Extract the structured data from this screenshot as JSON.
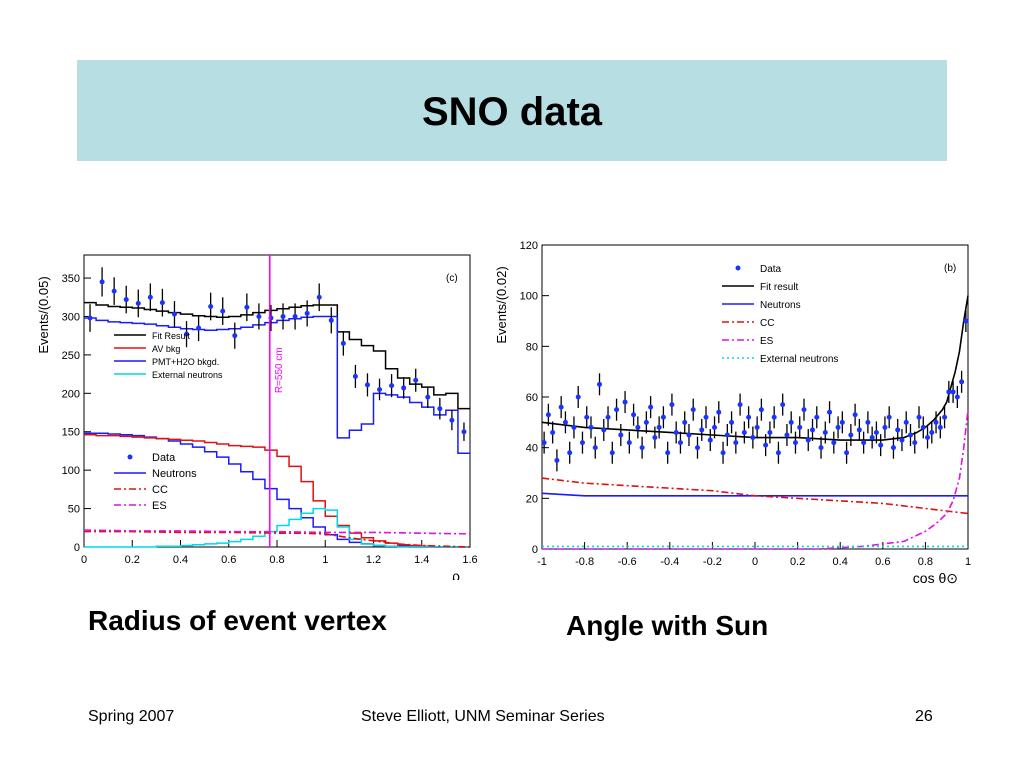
{
  "slide": {
    "title": "SNO data",
    "captions": {
      "left": "Radius of event vertex",
      "right": "Angle with Sun"
    },
    "footer": {
      "left": "Spring 2007",
      "center": "Steve Elliott, UNM Seminar Series",
      "page": "26"
    },
    "colors": {
      "title_band": "#b7dee2",
      "data": "#1a33ff",
      "fit": "#000000",
      "neutrons": "#1a1aff",
      "cc": "#e01010",
      "es": "#e010e0",
      "ext": "#00d8e8",
      "r_line": "#ff00ff"
    }
  },
  "chart_data": [
    {
      "type": "line",
      "panel_tag": "(c)",
      "xlabel": "ρ",
      "ylabel": "Events/(0.05)",
      "xlim": [
        0,
        1.6
      ],
      "ylim": [
        0,
        380
      ],
      "x_ticks": [
        "0",
        "0.2",
        "0.4",
        "0.6",
        "0.8",
        "1",
        "1.2",
        "1.4",
        "1.6"
      ],
      "x_tick_values": [
        0,
        0.2,
        0.4,
        0.6,
        0.8,
        1,
        1.2,
        1.4,
        1.6
      ],
      "y_ticks": [
        "0",
        "50",
        "100",
        "150",
        "200",
        "250",
        "300",
        "350"
      ],
      "y_tick_values": [
        0,
        50,
        100,
        150,
        200,
        250,
        300,
        350
      ],
      "marker": {
        "x": 0.77,
        "label": "R=550 cm"
      },
      "legend_top": [
        "Fit Result",
        "AV bkg",
        "PMT+H2O bkgd.",
        "External neutrons"
      ],
      "legend_bottom": [
        "Data",
        "Neutrons",
        "CC",
        "ES"
      ],
      "series": [
        {
          "name": "Fit Result",
          "style": "step",
          "color": "#000000",
          "edges": [
            0,
            0.05,
            0.1,
            0.15,
            0.2,
            0.25,
            0.3,
            0.35,
            0.4,
            0.45,
            0.5,
            0.55,
            0.6,
            0.65,
            0.7,
            0.75,
            0.8,
            0.85,
            0.9,
            0.95,
            1.0,
            1.05,
            1.1,
            1.15,
            1.2,
            1.25,
            1.3,
            1.35,
            1.4,
            1.45,
            1.5,
            1.55,
            1.6
          ],
          "values": [
            318,
            315,
            313,
            312,
            311,
            309,
            307,
            305,
            303,
            301,
            300,
            299,
            300,
            302,
            305,
            308,
            310,
            312,
            314,
            315,
            315,
            280,
            270,
            262,
            255,
            232,
            220,
            212,
            208,
            198,
            200,
            180
          ]
        },
        {
          "name": "PMT+H2O bkgd.",
          "style": "step",
          "color": "#1a1aff",
          "edges": [
            0,
            0.05,
            0.1,
            0.15,
            0.2,
            0.25,
            0.3,
            0.35,
            0.4,
            0.45,
            0.5,
            0.55,
            0.6,
            0.65,
            0.7,
            0.75,
            0.8,
            0.85,
            0.9,
            0.95,
            1.0,
            1.05,
            1.1,
            1.15,
            1.2,
            1.25,
            1.3,
            1.35,
            1.4,
            1.45,
            1.5,
            1.55,
            1.6
          ],
          "values": [
            298,
            295,
            293,
            292,
            291,
            290,
            288,
            286,
            284,
            283,
            282,
            283,
            284,
            286,
            289,
            292,
            295,
            297,
            299,
            300,
            300,
            142,
            152,
            160,
            200,
            198,
            195,
            188,
            182,
            172,
            178,
            122
          ]
        },
        {
          "name": "Neutrons",
          "style": "step",
          "color": "#1a1aff",
          "edges": [
            0,
            0.05,
            0.1,
            0.15,
            0.2,
            0.25,
            0.3,
            0.35,
            0.4,
            0.45,
            0.5,
            0.55,
            0.6,
            0.65,
            0.7,
            0.75,
            0.8,
            0.85,
            0.9,
            0.95,
            1.0,
            1.05,
            1.1,
            1.15,
            1.2,
            1.25,
            1.3,
            1.35,
            1.4,
            1.45,
            1.5,
            1.55,
            1.6
          ],
          "values": [
            148,
            148,
            147,
            146,
            145,
            143,
            141,
            138,
            134,
            130,
            124,
            117,
            108,
            98,
            88,
            76,
            62,
            50,
            38,
            26,
            16,
            10,
            6,
            4,
            2,
            1,
            1,
            0,
            0,
            0,
            0,
            0
          ]
        },
        {
          "name": "AV bkg",
          "style": "step",
          "color": "#e01010",
          "edges": [
            0,
            0.05,
            0.1,
            0.15,
            0.2,
            0.25,
            0.3,
            0.35,
            0.4,
            0.45,
            0.5,
            0.55,
            0.6,
            0.65,
            0.7,
            0.75,
            0.8,
            0.85,
            0.9,
            0.95,
            1.0,
            1.05,
            1.1,
            1.15,
            1.2,
            1.25,
            1.3,
            1.35,
            1.4,
            1.45,
            1.5,
            1.55,
            1.6
          ],
          "values": [
            146,
            145,
            145,
            144,
            143,
            142,
            141,
            140,
            139,
            138,
            136,
            134,
            132,
            131,
            130,
            126,
            118,
            105,
            85,
            60,
            40,
            28,
            18,
            12,
            8,
            5,
            3,
            2,
            1,
            0,
            0,
            0
          ]
        },
        {
          "name": "External neutrons",
          "style": "step",
          "color": "#00d8e8",
          "edges": [
            0,
            0.05,
            0.1,
            0.15,
            0.2,
            0.25,
            0.3,
            0.35,
            0.4,
            0.45,
            0.5,
            0.55,
            0.6,
            0.65,
            0.7,
            0.75,
            0.8,
            0.85,
            0.9,
            0.95,
            1.0,
            1.05,
            1.1,
            1.15,
            1.2,
            1.25,
            1.3,
            1.35,
            1.4,
            1.45,
            1.5,
            1.55,
            1.6
          ],
          "values": [
            0,
            0,
            0,
            0,
            0,
            0,
            1,
            1,
            2,
            3,
            4,
            5,
            7,
            10,
            14,
            20,
            28,
            36,
            44,
            50,
            48,
            26,
            10,
            4,
            2,
            1,
            0,
            0,
            0,
            0,
            0,
            0
          ]
        },
        {
          "name": "CC",
          "style": "dashdot",
          "color": "#e01010",
          "x": [
            0,
            0.2,
            0.4,
            0.6,
            0.8,
            0.9,
            1.0,
            1.1,
            1.2,
            1.3,
            1.4,
            1.5,
            1.6
          ],
          "y": [
            20,
            20,
            19,
            19,
            18,
            18,
            17,
            12,
            8,
            4,
            2,
            1,
            0
          ]
        },
        {
          "name": "ES",
          "style": "dashdot",
          "color": "#e010e0",
          "x": [
            0,
            0.2,
            0.4,
            0.6,
            0.8,
            1.0,
            1.2,
            1.4,
            1.6
          ],
          "y": [
            22,
            21,
            21,
            20,
            20,
            19,
            19,
            18,
            17
          ]
        },
        {
          "name": "Data",
          "style": "points",
          "color": "#1a33ff",
          "x": [
            0.025,
            0.075,
            0.125,
            0.175,
            0.225,
            0.275,
            0.325,
            0.375,
            0.425,
            0.475,
            0.525,
            0.575,
            0.625,
            0.675,
            0.725,
            0.775,
            0.825,
            0.875,
            0.925,
            0.975,
            1.025,
            1.075,
            1.125,
            1.175,
            1.225,
            1.275,
            1.325,
            1.375,
            1.425,
            1.475,
            1.525,
            1.575
          ],
          "y": [
            298,
            345,
            333,
            322,
            317,
            325,
            318,
            303,
            277,
            285,
            313,
            307,
            275,
            312,
            300,
            298,
            300,
            300,
            304,
            325,
            295,
            265,
            222,
            211,
            205,
            210,
            207,
            217,
            195,
            180,
            165,
            150
          ],
          "err": [
            18,
            19,
            18,
            18,
            18,
            18,
            18,
            17,
            17,
            17,
            18,
            18,
            17,
            18,
            17,
            17,
            17,
            17,
            17,
            18,
            17,
            16,
            15,
            15,
            14,
            15,
            14,
            15,
            14,
            14,
            13,
            12
          ]
        }
      ]
    },
    {
      "type": "line",
      "panel_tag": "(b)",
      "xlabel": "cos θ⊙",
      "ylabel": "Events/(0.02)",
      "xlim": [
        -1,
        1
      ],
      "ylim": [
        0,
        120
      ],
      "x_ticks": [
        "-1",
        "-0.8",
        "-0.6",
        "-0.4",
        "-0.2",
        "0",
        "0.2",
        "0.4",
        "0.6",
        "0.8",
        "1"
      ],
      "x_tick_values": [
        -1,
        -0.8,
        -0.6,
        -0.4,
        -0.2,
        0,
        0.2,
        0.4,
        0.6,
        0.8,
        1
      ],
      "y_ticks": [
        "0",
        "20",
        "40",
        "60",
        "80",
        "100",
        "120"
      ],
      "y_tick_values": [
        0,
        20,
        40,
        60,
        80,
        100,
        120
      ],
      "legend": [
        "Data",
        "Fit result",
        "Neutrons",
        "CC",
        "ES",
        "External neutrons"
      ],
      "series": [
        {
          "name": "Fit result",
          "style": "line",
          "color": "#000000",
          "x": [
            -1,
            -0.8,
            -0.6,
            -0.4,
            -0.2,
            0,
            0.2,
            0.4,
            0.6,
            0.7,
            0.76,
            0.8,
            0.84,
            0.88,
            0.9,
            0.92,
            0.94,
            0.96,
            0.98,
            1.0
          ],
          "y": [
            50,
            48,
            47,
            46,
            45,
            44,
            44,
            43,
            43,
            44,
            46,
            48,
            51,
            55,
            58,
            64,
            70,
            78,
            90,
            100
          ]
        },
        {
          "name": "Neutrons",
          "style": "line",
          "color": "#1a1aff",
          "x": [
            -1,
            -0.8,
            -0.6,
            -0.4,
            -0.2,
            0,
            0.2,
            0.4,
            0.6,
            0.8,
            1.0
          ],
          "y": [
            22,
            21,
            21,
            21,
            21,
            21,
            21,
            21,
            21,
            21,
            21
          ]
        },
        {
          "name": "CC",
          "style": "dashdot",
          "color": "#e01010",
          "x": [
            -1,
            -0.8,
            -0.6,
            -0.4,
            -0.2,
            0,
            0.2,
            0.4,
            0.6,
            0.8,
            1.0
          ],
          "y": [
            28,
            26,
            25,
            24,
            23,
            21,
            20,
            19,
            18,
            16,
            14
          ]
        },
        {
          "name": "ES",
          "style": "dashdot",
          "color": "#e010e0",
          "x": [
            -1,
            0.3,
            0.5,
            0.6,
            0.7,
            0.75,
            0.8,
            0.85,
            0.9,
            0.93,
            0.96,
            0.98,
            1.0
          ],
          "y": [
            0,
            0,
            1,
            2,
            3,
            5,
            7,
            10,
            14,
            19,
            28,
            40,
            55
          ]
        },
        {
          "name": "External neutrons",
          "style": "dotted",
          "color": "#00d8e8",
          "x": [
            -1,
            1
          ],
          "y": [
            1,
            1
          ]
        },
        {
          "name": "Data",
          "style": "points",
          "color": "#1a33ff",
          "x": [
            -0.99,
            -0.97,
            -0.95,
            -0.93,
            -0.91,
            -0.89,
            -0.87,
            -0.85,
            -0.83,
            -0.81,
            -0.79,
            -0.77,
            -0.75,
            -0.73,
            -0.71,
            -0.69,
            -0.67,
            -0.65,
            -0.63,
            -0.61,
            -0.59,
            -0.57,
            -0.55,
            -0.53,
            -0.51,
            -0.49,
            -0.47,
            -0.45,
            -0.43,
            -0.41,
            -0.39,
            -0.37,
            -0.35,
            -0.33,
            -0.31,
            -0.29,
            -0.27,
            -0.25,
            -0.23,
            -0.21,
            -0.19,
            -0.17,
            -0.15,
            -0.13,
            -0.11,
            -0.09,
            -0.07,
            -0.05,
            -0.03,
            -0.01,
            0.01,
            0.03,
            0.05,
            0.07,
            0.09,
            0.11,
            0.13,
            0.15,
            0.17,
            0.19,
            0.21,
            0.23,
            0.25,
            0.27,
            0.29,
            0.31,
            0.33,
            0.35,
            0.37,
            0.39,
            0.41,
            0.43,
            0.45,
            0.47,
            0.49,
            0.51,
            0.53,
            0.55,
            0.57,
            0.59,
            0.61,
            0.63,
            0.65,
            0.67,
            0.69,
            0.71,
            0.73,
            0.75,
            0.77,
            0.79,
            0.81,
            0.83,
            0.85,
            0.87,
            0.89,
            0.91,
            0.93,
            0.95,
            0.97,
            0.99
          ],
          "y": [
            42,
            53,
            46,
            35,
            56,
            50,
            38,
            48,
            60,
            42,
            52,
            48,
            40,
            65,
            47,
            52,
            38,
            55,
            45,
            58,
            42,
            53,
            48,
            40,
            50,
            56,
            44,
            48,
            52,
            38,
            57,
            46,
            42,
            50,
            45,
            55,
            40,
            47,
            52,
            43,
            48,
            54,
            38,
            45,
            50,
            42,
            57,
            46,
            52,
            44,
            48,
            55,
            41,
            46,
            52,
            38,
            57,
            45,
            50,
            42,
            48,
            55,
            43,
            47,
            52,
            40,
            46,
            54,
            42,
            48,
            50,
            38,
            45,
            53,
            47,
            42,
            50,
            44,
            46,
            41,
            48,
            52,
            40,
            47,
            43,
            50,
            45,
            42,
            52,
            48,
            44,
            46,
            50,
            48,
            52,
            62,
            62,
            60,
            66,
            90
          ]
        }
      ]
    }
  ]
}
